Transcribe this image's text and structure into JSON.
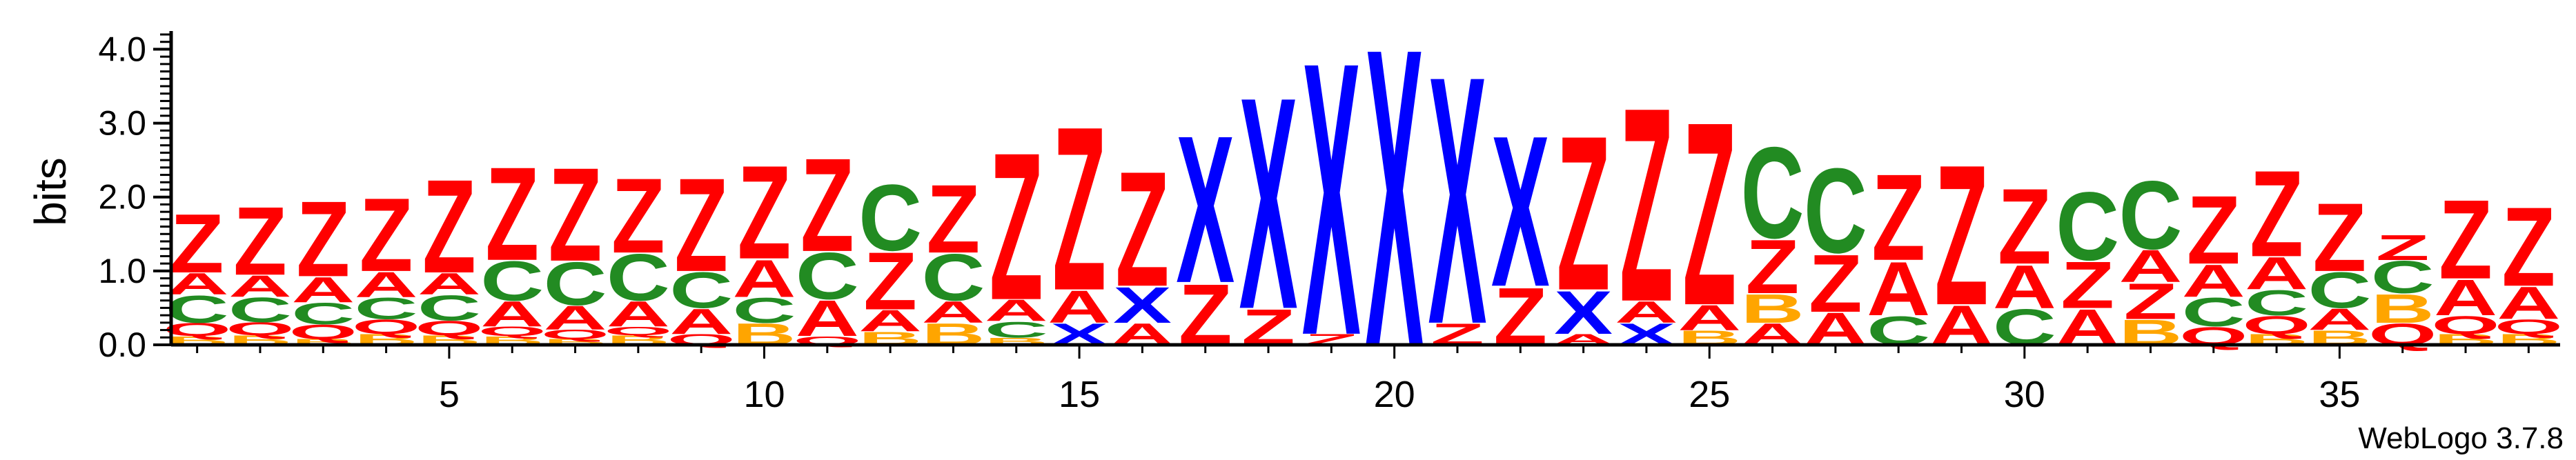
{
  "chart_data": {
    "type": "sequence-logo",
    "ylabel": "bits",
    "ylim": [
      0,
      4.2
    ],
    "y_ticks": [
      "0.0",
      "1.0",
      "2.0",
      "3.0",
      "4.0"
    ],
    "y_tick_values": [
      0,
      1,
      2,
      3,
      4
    ],
    "x_ticks": [
      "5",
      "10",
      "15",
      "20",
      "25",
      "30",
      "35"
    ],
    "x_tick_values": [
      5,
      10,
      15,
      20,
      25,
      30,
      35
    ],
    "grid": false,
    "colors": {
      "Z": "#ff0000",
      "A": "#ff0000",
      "Q": "#ff0000",
      "C": "#228b22",
      "B": "#ffa500",
      "X": "#0000ff"
    },
    "positions": [
      {
        "pos": 1,
        "stack": [
          [
            "B",
            0.12
          ],
          [
            "Q",
            0.18
          ],
          [
            "C",
            0.38
          ],
          [
            "A",
            0.3
          ],
          [
            "Z",
            0.82
          ]
        ]
      },
      {
        "pos": 2,
        "stack": [
          [
            "B",
            0.13
          ],
          [
            "Q",
            0.18
          ],
          [
            "C",
            0.34
          ],
          [
            "A",
            0.3
          ],
          [
            "Z",
            0.95
          ]
        ]
      },
      {
        "pos": 3,
        "stack": [
          [
            "B",
            0.08
          ],
          [
            "Q",
            0.2
          ],
          [
            "C",
            0.3
          ],
          [
            "A",
            0.35
          ],
          [
            "Z",
            1.05
          ]
        ]
      },
      {
        "pos": 4,
        "stack": [
          [
            "B",
            0.15
          ],
          [
            "Q",
            0.2
          ],
          [
            "C",
            0.3
          ],
          [
            "A",
            0.35
          ],
          [
            "Z",
            1.02
          ]
        ]
      },
      {
        "pos": 5,
        "stack": [
          [
            "B",
            0.13
          ],
          [
            "Q",
            0.2
          ],
          [
            "C",
            0.35
          ],
          [
            "A",
            0.3
          ],
          [
            "Z",
            1.3
          ]
        ]
      },
      {
        "pos": 6,
        "stack": [
          [
            "B",
            0.12
          ],
          [
            "Q",
            0.13
          ],
          [
            "A",
            0.35
          ],
          [
            "C",
            0.55
          ],
          [
            "Z",
            1.3
          ]
        ]
      },
      {
        "pos": 7,
        "stack": [
          [
            "B",
            0.08
          ],
          [
            "Q",
            0.13
          ],
          [
            "A",
            0.33
          ],
          [
            "C",
            0.6
          ],
          [
            "Z",
            1.3
          ]
        ]
      },
      {
        "pos": 8,
        "stack": [
          [
            "B",
            0.13
          ],
          [
            "Q",
            0.12
          ],
          [
            "A",
            0.35
          ],
          [
            "C",
            0.65
          ],
          [
            "Z",
            1.04
          ]
        ]
      },
      {
        "pos": 9,
        "stack": [
          [
            "Q",
            0.15
          ],
          [
            "A",
            0.35
          ],
          [
            "C",
            0.5
          ],
          [
            "Z",
            1.3
          ]
        ]
      },
      {
        "pos": 10,
        "stack": [
          [
            "B",
            0.3
          ],
          [
            "C",
            0.35
          ],
          [
            "A",
            0.52
          ],
          [
            "Z",
            1.3
          ]
        ]
      },
      {
        "pos": 11,
        "stack": [
          [
            "Q",
            0.12
          ],
          [
            "A",
            0.5
          ],
          [
            "C",
            0.65
          ],
          [
            "Z",
            1.3
          ]
        ]
      },
      {
        "pos": 12,
        "stack": [
          [
            "B",
            0.18
          ],
          [
            "A",
            0.3
          ],
          [
            "Z",
            0.8
          ],
          [
            "C",
            0.92
          ]
        ]
      },
      {
        "pos": 13,
        "stack": [
          [
            "B",
            0.3
          ],
          [
            "A",
            0.3
          ],
          [
            "C",
            0.65
          ],
          [
            "Z",
            0.95
          ]
        ]
      },
      {
        "pos": 14,
        "stack": [
          [
            "B",
            0.1
          ],
          [
            "C",
            0.22
          ],
          [
            "A",
            0.3
          ],
          [
            "Z",
            2.05
          ]
        ]
      },
      {
        "pos": 15,
        "stack": [
          [
            "X",
            0.3
          ],
          [
            "A",
            0.45
          ],
          [
            "Z",
            2.28
          ]
        ]
      },
      {
        "pos": 16,
        "stack": [
          [
            "A",
            0.3
          ],
          [
            "X",
            0.5
          ],
          [
            "Z",
            1.6
          ]
        ]
      },
      {
        "pos": 17,
        "stack": [
          [
            "Z",
            0.85
          ],
          [
            "X",
            2.05
          ]
        ]
      },
      {
        "pos": 18,
        "stack": [
          [
            "Z",
            0.5
          ],
          [
            "X",
            2.95
          ]
        ]
      },
      {
        "pos": 19,
        "stack": [
          [
            "Z",
            0.15
          ],
          [
            "X",
            3.8
          ]
        ]
      },
      {
        "pos": 20,
        "stack": [
          [
            "X",
            4.15
          ]
        ]
      },
      {
        "pos": 21,
        "stack": [
          [
            "Z",
            0.3
          ],
          [
            "X",
            3.45
          ]
        ]
      },
      {
        "pos": 22,
        "stack": [
          [
            "Z",
            0.8
          ],
          [
            "X",
            2.1
          ]
        ]
      },
      {
        "pos": 23,
        "stack": [
          [
            "A",
            0.15
          ],
          [
            "X",
            0.6
          ],
          [
            "Z",
            2.15
          ]
        ]
      },
      {
        "pos": 24,
        "stack": [
          [
            "X",
            0.3
          ],
          [
            "A",
            0.3
          ],
          [
            "Z",
            2.7
          ]
        ]
      },
      {
        "pos": 25,
        "stack": [
          [
            "B",
            0.2
          ],
          [
            "A",
            0.35
          ],
          [
            "Z",
            2.55
          ]
        ]
      },
      {
        "pos": 26,
        "stack": [
          [
            "A",
            0.3
          ],
          [
            "B",
            0.4
          ],
          [
            "Z",
            0.75
          ],
          [
            "C",
            1.27
          ]
        ]
      },
      {
        "pos": 27,
        "stack": [
          [
            "A",
            0.45
          ],
          [
            "Z",
            0.8
          ],
          [
            "C",
            1.18
          ]
        ]
      },
      {
        "pos": 28,
        "stack": [
          [
            "C",
            0.4
          ],
          [
            "A",
            0.75
          ],
          [
            "Z",
            1.2
          ]
        ]
      },
      {
        "pos": 29,
        "stack": [
          [
            "A",
            0.55
          ],
          [
            "Z",
            1.95
          ]
        ]
      },
      {
        "pos": 30,
        "stack": [
          [
            "C",
            0.5
          ],
          [
            "A",
            0.6
          ],
          [
            "Z",
            1.05
          ]
        ]
      },
      {
        "pos": 31,
        "stack": [
          [
            "A",
            0.5
          ],
          [
            "Z",
            0.65
          ],
          [
            "C",
            0.95
          ]
        ]
      },
      {
        "pos": 32,
        "stack": [
          [
            "B",
            0.35
          ],
          [
            "Z",
            0.5
          ],
          [
            "A",
            0.45
          ],
          [
            "C",
            0.95
          ]
        ]
      },
      {
        "pos": 33,
        "stack": [
          [
            "Q",
            0.25
          ],
          [
            "C",
            0.4
          ],
          [
            "A",
            0.45
          ],
          [
            "Z",
            0.95
          ]
        ]
      },
      {
        "pos": 34,
        "stack": [
          [
            "B",
            0.15
          ],
          [
            "Q",
            0.25
          ],
          [
            "C",
            0.35
          ],
          [
            "A",
            0.45
          ],
          [
            "Z",
            1.2
          ]
        ]
      },
      {
        "pos": 35,
        "stack": [
          [
            "B",
            0.2
          ],
          [
            "A",
            0.3
          ],
          [
            "C",
            0.5
          ],
          [
            "Z",
            0.95
          ]
        ]
      },
      {
        "pos": 36,
        "stack": [
          [
            "Q",
            0.3
          ],
          [
            "B",
            0.4
          ],
          [
            "C",
            0.45
          ],
          [
            "Z",
            0.35
          ]
        ]
      },
      {
        "pos": 37,
        "stack": [
          [
            "B",
            0.15
          ],
          [
            "Q",
            0.25
          ],
          [
            "A",
            0.5
          ],
          [
            "Z",
            1.1
          ]
        ]
      },
      {
        "pos": 38,
        "stack": [
          [
            "B",
            0.15
          ],
          [
            "Q",
            0.2
          ],
          [
            "A",
            0.45
          ],
          [
            "Z",
            1.1
          ]
        ]
      }
    ]
  },
  "footer": {
    "version_label": "WebLogo 3.7.8"
  }
}
